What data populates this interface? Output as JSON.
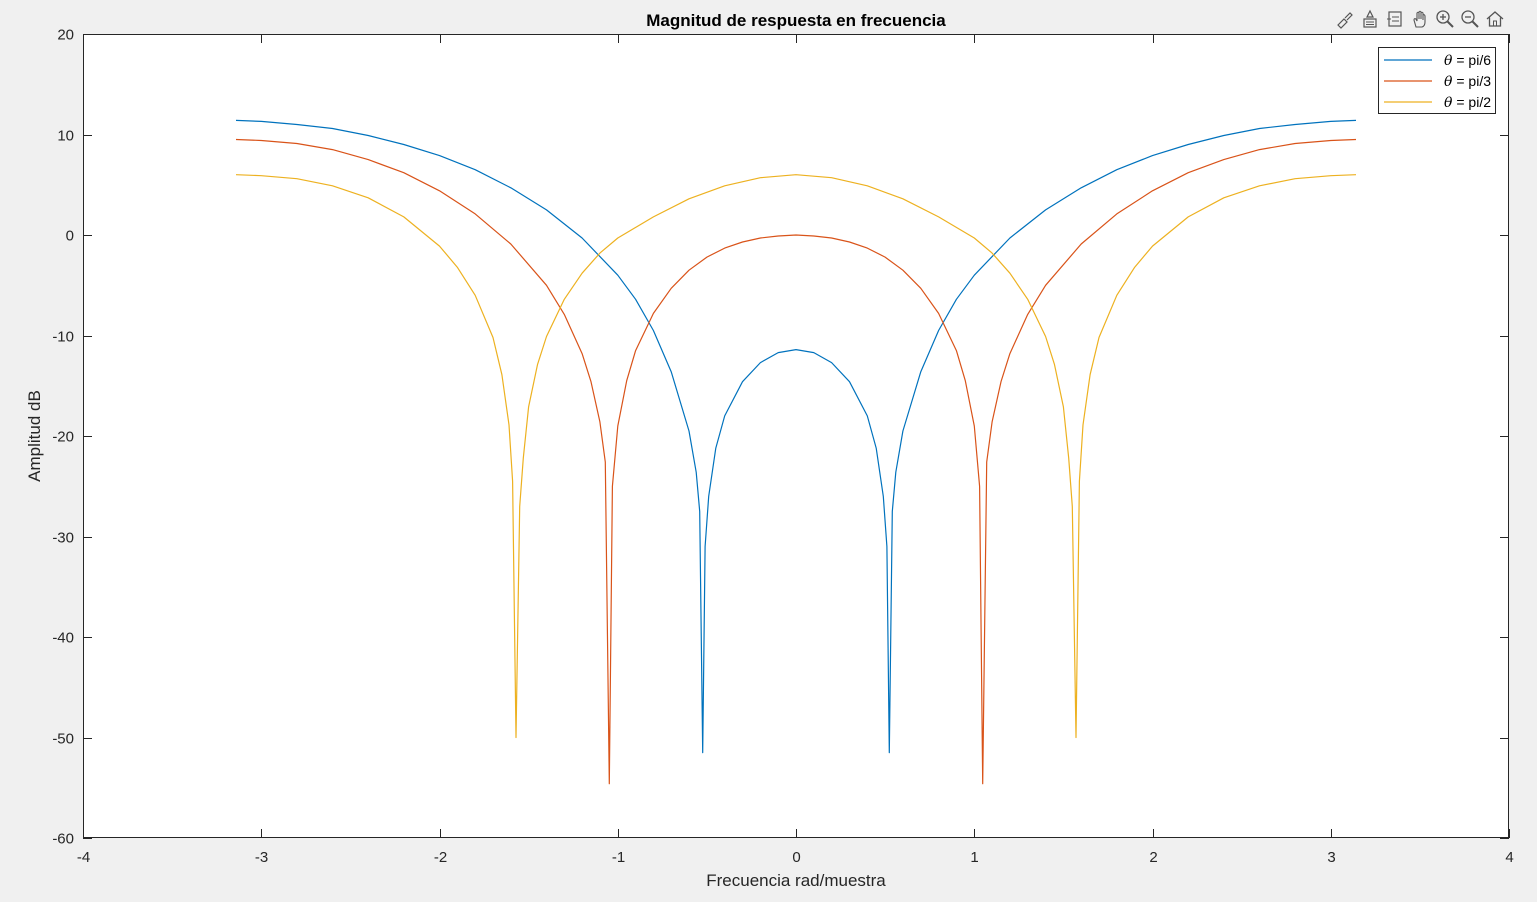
{
  "toolbar": {
    "icons": [
      "brush-icon",
      "data-tips-icon",
      "restore-view-icon",
      "pan-icon",
      "zoom-in-icon",
      "zoom-out-icon",
      "home-icon"
    ]
  },
  "colors": {
    "background": "#f0f0f0",
    "axes_background": "#ffffff",
    "axis": "#262626",
    "series": [
      "#0072BD",
      "#D95319",
      "#EDB120"
    ]
  },
  "chart_data": {
    "type": "line",
    "title": "Magnitud de respuesta en frecuencia",
    "xlabel": "Frecuencia rad/muestra",
    "ylabel": "Amplitud dB",
    "xlim": [
      -4,
      4
    ],
    "ylim": [
      -60,
      20
    ],
    "xticks": [
      -4,
      -3,
      -2,
      -1,
      0,
      1,
      2,
      3,
      4
    ],
    "yticks": [
      -60,
      -50,
      -40,
      -30,
      -20,
      -10,
      0,
      10,
      20
    ],
    "xtick_labels": [
      "-4",
      "-3",
      "-2",
      "-1",
      "0",
      "1",
      "2",
      "3",
      "4"
    ],
    "ytick_labels": [
      "-60",
      "-50",
      "-40",
      "-30",
      "-20",
      "-10",
      "0",
      "10",
      "20"
    ],
    "grid": false,
    "legend_position": "top-right",
    "series": [
      {
        "name": "θ = pi/6",
        "legend_symbol": "θ",
        "legend_text": " = pi/6",
        "color": "#0072BD",
        "x": [
          -3.1416,
          -3.0,
          -2.8,
          -2.6,
          -2.4,
          -2.2,
          -2.0,
          -1.8,
          -1.6,
          -1.4,
          -1.2,
          -1.0,
          -0.9,
          -0.8,
          -0.7,
          -0.6,
          -0.56,
          -0.54,
          -0.5236,
          -0.51,
          -0.49,
          -0.45,
          -0.4,
          -0.3,
          -0.2,
          -0.1,
          0.0,
          0.1,
          0.2,
          0.3,
          0.4,
          0.45,
          0.49,
          0.51,
          0.5236,
          0.54,
          0.56,
          0.6,
          0.7,
          0.8,
          0.9,
          1.0,
          1.2,
          1.4,
          1.6,
          1.8,
          2.0,
          2.2,
          2.4,
          2.6,
          2.8,
          3.0,
          3.1416
        ],
        "y": [
          11.4,
          11.3,
          11.0,
          10.6,
          9.9,
          9.0,
          7.9,
          6.5,
          4.7,
          2.5,
          -0.3,
          -4.0,
          -6.4,
          -9.5,
          -13.6,
          -19.5,
          -23.6,
          -27.5,
          -51.5,
          -31.0,
          -26.0,
          -21.2,
          -18.0,
          -14.6,
          -12.7,
          -11.7,
          -11.4,
          -11.7,
          -12.7,
          -14.6,
          -18.0,
          -21.2,
          -26.0,
          -31.0,
          -51.5,
          -27.5,
          -23.6,
          -19.5,
          -13.6,
          -9.5,
          -6.4,
          -4.0,
          -0.3,
          2.5,
          4.7,
          6.5,
          7.9,
          9.0,
          9.9,
          10.6,
          11.0,
          11.3,
          11.4
        ]
      },
      {
        "name": "θ = pi/3",
        "legend_symbol": "θ",
        "legend_text": " = pi/3",
        "color": "#D95319",
        "x": [
          -3.1416,
          -3.0,
          -2.8,
          -2.6,
          -2.4,
          -2.2,
          -2.0,
          -1.8,
          -1.6,
          -1.4,
          -1.3,
          -1.2,
          -1.15,
          -1.1,
          -1.07,
          -1.0472,
          -1.03,
          -1.0,
          -0.95,
          -0.9,
          -0.8,
          -0.7,
          -0.6,
          -0.5,
          -0.4,
          -0.3,
          -0.2,
          -0.1,
          0.0,
          0.1,
          0.2,
          0.3,
          0.4,
          0.5,
          0.6,
          0.7,
          0.8,
          0.9,
          0.95,
          1.0,
          1.03,
          1.0472,
          1.07,
          1.1,
          1.15,
          1.2,
          1.3,
          1.4,
          1.6,
          1.8,
          2.0,
          2.2,
          2.4,
          2.6,
          2.8,
          3.0,
          3.1416
        ],
        "y": [
          9.5,
          9.4,
          9.1,
          8.5,
          7.5,
          6.2,
          4.4,
          2.1,
          -0.9,
          -5.0,
          -7.9,
          -11.8,
          -14.6,
          -18.6,
          -22.6,
          -54.6,
          -25.0,
          -19.0,
          -14.5,
          -11.5,
          -7.8,
          -5.3,
          -3.5,
          -2.2,
          -1.3,
          -0.7,
          -0.3,
          -0.1,
          0.0,
          -0.1,
          -0.3,
          -0.7,
          -1.3,
          -2.2,
          -3.5,
          -5.3,
          -7.8,
          -11.5,
          -14.5,
          -19.0,
          -25.0,
          -54.6,
          -22.6,
          -18.6,
          -14.6,
          -11.8,
          -7.9,
          -5.0,
          -0.9,
          2.1,
          4.4,
          6.2,
          7.5,
          8.5,
          9.1,
          9.4,
          9.5
        ]
      },
      {
        "name": "θ = pi/2",
        "legend_symbol": "θ",
        "legend_text": " = pi/2",
        "color": "#EDB120",
        "x": [
          -3.1416,
          -3.0,
          -2.8,
          -2.6,
          -2.4,
          -2.2,
          -2.0,
          -1.9,
          -1.8,
          -1.7,
          -1.65,
          -1.61,
          -1.59,
          -1.5708,
          -1.55,
          -1.53,
          -1.5,
          -1.45,
          -1.4,
          -1.3,
          -1.2,
          -1.1,
          -1.0,
          -0.8,
          -0.6,
          -0.4,
          -0.2,
          0.0,
          0.2,
          0.4,
          0.6,
          0.8,
          1.0,
          1.1,
          1.2,
          1.3,
          1.4,
          1.45,
          1.5,
          1.53,
          1.55,
          1.5708,
          1.59,
          1.61,
          1.65,
          1.7,
          1.8,
          1.9,
          2.0,
          2.2,
          2.4,
          2.6,
          2.8,
          3.0,
          3.1416
        ],
        "y": [
          6.0,
          5.9,
          5.6,
          4.9,
          3.7,
          1.8,
          -1.1,
          -3.2,
          -6.0,
          -10.2,
          -13.9,
          -18.9,
          -24.5,
          -50.0,
          -27.0,
          -22.2,
          -17.1,
          -12.9,
          -10.1,
          -6.4,
          -3.8,
          -1.8,
          -0.3,
          1.8,
          3.6,
          4.9,
          5.7,
          6.0,
          5.7,
          4.9,
          3.6,
          1.8,
          -0.3,
          -1.8,
          -3.8,
          -6.4,
          -10.1,
          -12.9,
          -17.1,
          -22.2,
          -27.0,
          -50.0,
          -24.5,
          -18.9,
          -13.9,
          -10.2,
          -6.0,
          -3.2,
          -1.1,
          1.8,
          3.7,
          4.9,
          5.6,
          5.9,
          6.0
        ]
      }
    ]
  }
}
